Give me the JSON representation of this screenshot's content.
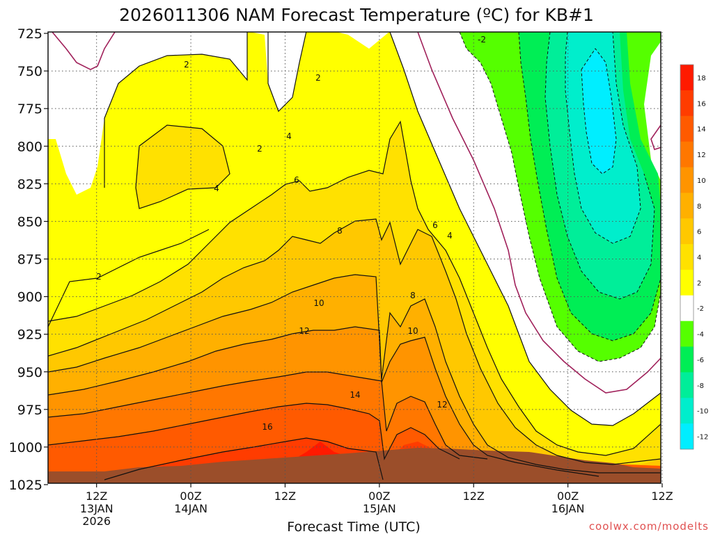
{
  "chart_data": {
    "type": "contour",
    "title": "2026011306 NAM Forecast Temperature (ºC) for KB#1",
    "xlabel": "Forecast Time (UTC)",
    "ylabel": "",
    "y_ticks": [
      {
        "label": "725",
        "value": 725
      },
      {
        "label": "750",
        "value": 750
      },
      {
        "label": "775",
        "value": 775
      },
      {
        "label": "800",
        "value": 800
      },
      {
        "label": "825",
        "value": 825
      },
      {
        "label": "850",
        "value": 850
      },
      {
        "label": "875",
        "value": 875
      },
      {
        "label": "900",
        "value": 900
      },
      {
        "label": "925",
        "value": 925
      },
      {
        "label": "950",
        "value": 950
      },
      {
        "label": "975",
        "value": 975
      },
      {
        "label": "1000",
        "value": 1000
      },
      {
        "label": "1025",
        "value": 1025
      }
    ],
    "ylim": [
      725,
      1025
    ],
    "x_hours_range": [
      9,
      87
    ],
    "x_ticks": [
      {
        "hour": 15,
        "lines": [
          "12Z",
          "13JAN",
          "2026"
        ]
      },
      {
        "hour": 27,
        "lines": [
          "00Z",
          "14JAN"
        ]
      },
      {
        "hour": 39,
        "lines": [
          "12Z"
        ]
      },
      {
        "hour": 51,
        "lines": [
          "00Z",
          "15JAN"
        ]
      },
      {
        "hour": 63,
        "lines": [
          "12Z"
        ]
      },
      {
        "hour": 75,
        "lines": [
          "00Z",
          "16JAN"
        ]
      },
      {
        "hour": 87,
        "lines": [
          "12Z"
        ]
      }
    ],
    "colorbar": {
      "labels": [
        "18",
        "16",
        "14",
        "12",
        "10",
        "8",
        "6",
        "4",
        "2",
        "-2",
        "-4",
        "-6",
        "-8",
        "-10",
        "-12"
      ],
      "colors": [
        "#ff1a00",
        "#ff3c00",
        "#ff5a00",
        "#ff7700",
        "#ff9400",
        "#ffb000",
        "#ffc800",
        "#ffe100",
        "#ffff00",
        "#ffffff",
        "#55ff00",
        "#00ee55",
        "#00ee99",
        "#00eecc",
        "#00eeff"
      ]
    },
    "contour_labels": [
      "2",
      "2",
      "2",
      "2",
      "4",
      "4",
      "6",
      "8",
      "10",
      "12",
      "14",
      "16",
      "6",
      "4",
      "8",
      "10",
      "12",
      "-2"
    ],
    "credit": "coolwx.com/modelts"
  }
}
